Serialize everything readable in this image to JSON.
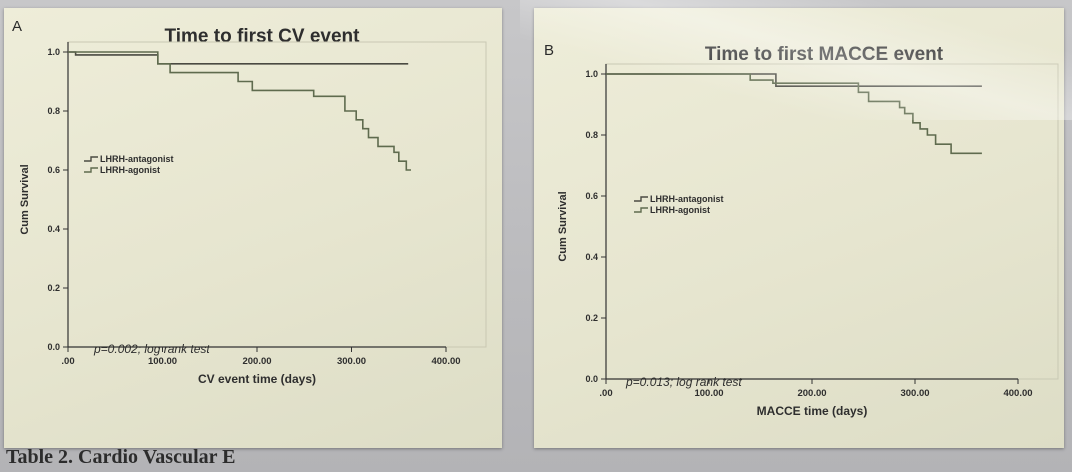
{
  "caption": "Table 2. Cardio Vascular E",
  "chart_data": [
    {
      "type": "line",
      "panel_label": "A",
      "title": "Time to first CV event",
      "xlabel": "CV event time (days)",
      "ylabel": "Cum Survival",
      "xlim": [
        0,
        400
      ],
      "ylim": [
        0,
        1
      ],
      "x_ticks": [
        ".00",
        "100.00",
        "200.00",
        "300.00",
        "400.00"
      ],
      "y_ticks": [
        "0.0",
        "0.2",
        "0.4",
        "0.6",
        "0.8",
        "1.0"
      ],
      "legend_position": "center-left",
      "annotation": "p=0.002; log rank test",
      "grid": false,
      "series": [
        {
          "name": "LHRH-antagonist",
          "color": "#4a4a42",
          "x": [
            0,
            8,
            8,
            95,
            95,
            360
          ],
          "y": [
            1.0,
            1.0,
            0.99,
            0.99,
            0.96,
            0.96
          ]
        },
        {
          "name": "LHRH-agonist",
          "color": "#5f6b4e",
          "x": [
            0,
            95,
            95,
            108,
            108,
            180,
            180,
            195,
            195,
            260,
            260,
            293,
            293,
            305,
            305,
            312,
            312,
            318,
            318,
            328,
            328,
            345,
            345,
            350,
            350,
            358,
            358,
            363
          ],
          "y": [
            1.0,
            1.0,
            0.96,
            0.96,
            0.93,
            0.93,
            0.9,
            0.9,
            0.87,
            0.87,
            0.85,
            0.85,
            0.8,
            0.8,
            0.77,
            0.77,
            0.74,
            0.74,
            0.71,
            0.71,
            0.68,
            0.68,
            0.66,
            0.66,
            0.63,
            0.63,
            0.6,
            0.6
          ]
        }
      ]
    },
    {
      "type": "line",
      "panel_label": "B",
      "title": "Time to first MACCE event",
      "xlabel": "MACCE time (days)",
      "ylabel": "Cum Survival",
      "xlim": [
        0,
        400
      ],
      "ylim": [
        0,
        1
      ],
      "x_ticks": [
        ".00",
        "100.00",
        "200.00",
        "300.00",
        "400.00"
      ],
      "y_ticks": [
        "0.0",
        "0.2",
        "0.4",
        "0.6",
        "0.8",
        "1.0"
      ],
      "legend_position": "center-left",
      "annotation": "p=0.013; log rank test",
      "grid": false,
      "series": [
        {
          "name": "LHRH-antagonist",
          "color": "#4a4a42",
          "x": [
            0,
            165,
            165,
            365
          ],
          "y": [
            1.0,
            1.0,
            0.96,
            0.96
          ]
        },
        {
          "name": "LHRH-agonist",
          "color": "#5f6b4e",
          "x": [
            0,
            140,
            140,
            162,
            162,
            245,
            245,
            255,
            255,
            285,
            285,
            290,
            290,
            298,
            298,
            305,
            305,
            312,
            312,
            320,
            320,
            335,
            335,
            365
          ],
          "y": [
            1.0,
            1.0,
            0.98,
            0.98,
            0.97,
            0.97,
            0.94,
            0.94,
            0.91,
            0.91,
            0.89,
            0.89,
            0.87,
            0.87,
            0.84,
            0.84,
            0.82,
            0.82,
            0.8,
            0.8,
            0.77,
            0.77,
            0.74,
            0.74
          ]
        }
      ]
    }
  ]
}
